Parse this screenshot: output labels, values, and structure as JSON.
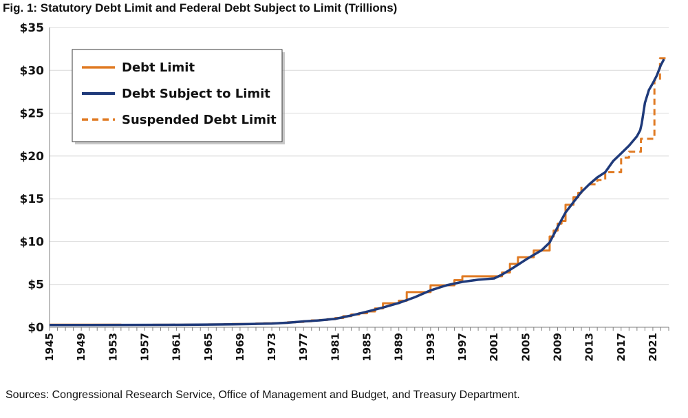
{
  "title": "Fig. 1: Statutory Debt Limit and Federal Debt Subject to Limit (Trillions)",
  "source": "Sources: Congressional Research Service, Office of Management and Budget, and Treasury Department.",
  "colors": {
    "limit": "#E07B24",
    "debt": "#1F3A7A",
    "grid": "#D9D9D9",
    "axis": "#7F7F7F"
  },
  "chart_data": {
    "type": "line",
    "xlim": [
      1945,
      2023
    ],
    "ylim": [
      0,
      35
    ],
    "ytick_values": [
      0,
      5,
      10,
      15,
      20,
      25,
      30,
      35
    ],
    "ytick_labels": [
      "$0",
      "$5",
      "$10",
      "$15",
      "$20",
      "$25",
      "$30",
      "$35"
    ],
    "xtick_labels": [
      "1945",
      "1949",
      "1953",
      "1957",
      "1961",
      "1965",
      "1969",
      "1973",
      "1977",
      "1981",
      "1985",
      "1989",
      "1993",
      "1997",
      "2001",
      "2005",
      "2009",
      "2013",
      "2017",
      "2021"
    ],
    "grid": true,
    "legend": [
      {
        "label": "Debt Limit",
        "style": "solid-orange"
      },
      {
        "label": "Debt Subject to Limit",
        "style": "solid-navy"
      },
      {
        "label": "Suspended Debt Limit",
        "style": "dashed-orange"
      }
    ],
    "series": [
      {
        "name": "Debt Limit",
        "step": true,
        "x": [
          1945,
          1954,
          1955,
          1956,
          1958,
          1959,
          1962,
          1963,
          1964,
          1965,
          1966,
          1967,
          1968,
          1971,
          1972,
          1973,
          1974,
          1975,
          1976,
          1977,
          1978,
          1979,
          1980,
          1981,
          1982,
          1983,
          1984,
          1985,
          1986,
          1987,
          1989,
          1990,
          1993,
          1996,
          1997,
          2002,
          2003,
          2004,
          2006,
          2008,
          2008.5,
          2009,
          2009.5,
          2010,
          2011,
          2011.6,
          2012
        ],
        "y": [
          0.3,
          0.28,
          0.28,
          0.28,
          0.29,
          0.29,
          0.3,
          0.3,
          0.32,
          0.33,
          0.33,
          0.36,
          0.38,
          0.43,
          0.46,
          0.47,
          0.5,
          0.58,
          0.63,
          0.7,
          0.8,
          0.85,
          0.94,
          1.08,
          1.29,
          1.49,
          1.64,
          1.85,
          2.2,
          2.8,
          3.1,
          4.1,
          4.9,
          5.5,
          5.95,
          6.4,
          7.4,
          8.18,
          8.97,
          10.6,
          11.3,
          12.1,
          12.4,
          14.3,
          15.2,
          15.7,
          16.39
        ]
      },
      {
        "name": "Suspended Debt Limit",
        "dashed": true,
        "step": true,
        "x": [
          2013,
          2014,
          2015,
          2017,
          2018,
          2019.5,
          2021,
          2021.2,
          2021.9,
          2023
        ],
        "y": [
          16.7,
          17.2,
          18.1,
          19.8,
          20.5,
          22.0,
          22.0,
          28.9,
          31.4,
          31.4
        ]
      },
      {
        "name": "Debt Subject to Limit",
        "x": [
          1945,
          1950,
          1955,
          1960,
          1965,
          1968,
          1970,
          1973,
          1975,
          1977,
          1979,
          1981,
          1983,
          1985,
          1987,
          1989,
          1991,
          1993,
          1995,
          1997,
          1999,
          2001,
          2002,
          2003,
          2004,
          2005,
          2006,
          2007,
          2008,
          2009,
          2010,
          2011,
          2012,
          2013,
          2014,
          2015,
          2016,
          2017,
          2018,
          2019,
          2019.4,
          2019.6,
          2020,
          2020.5,
          2021,
          2021.5,
          2022,
          2022.4
        ],
        "y": [
          0.26,
          0.26,
          0.27,
          0.28,
          0.31,
          0.34,
          0.37,
          0.43,
          0.53,
          0.68,
          0.8,
          0.98,
          1.37,
          1.82,
          2.3,
          2.83,
          3.5,
          4.3,
          4.9,
          5.3,
          5.55,
          5.7,
          6.15,
          6.7,
          7.3,
          7.9,
          8.45,
          9.0,
          9.9,
          11.7,
          13.4,
          14.6,
          15.8,
          16.7,
          17.5,
          18.1,
          19.4,
          20.3,
          21.2,
          22.3,
          23.0,
          23.8,
          26.2,
          27.7,
          28.5,
          29.4,
          30.6,
          31.3
        ]
      }
    ]
  }
}
